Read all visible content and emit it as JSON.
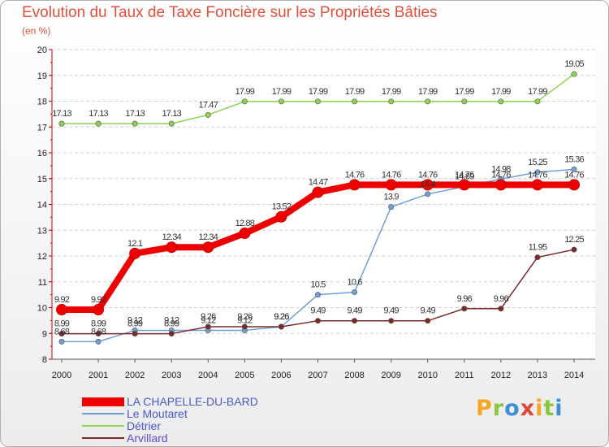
{
  "title": "Evolution du Taux de Taxe Foncière sur les Propriétés Bâties",
  "unit_label": "(en %)",
  "brand": {
    "text": "Proxiti",
    "letters": [
      "P",
      "r",
      "o",
      "x",
      "i",
      "t",
      "i"
    ],
    "colors": [
      "#f5a623",
      "#8cc63f",
      "#3a8fd6",
      "#e0463a",
      "#f5a623",
      "#8cc63f",
      "#3a8fd6"
    ]
  },
  "chart_data": {
    "type": "line",
    "title": "Evolution du Taux de Taxe Foncière sur les Propriétés Bâties",
    "ylabel": "(en %)",
    "xlabel": "",
    "ylim": [
      8,
      20
    ],
    "yticks": [
      8,
      9,
      10,
      11,
      12,
      13,
      14,
      15,
      16,
      17,
      18,
      19,
      20
    ],
    "categories": [
      "2000",
      "2001",
      "2002",
      "2003",
      "2004",
      "2005",
      "2006",
      "2007",
      "2008",
      "2009",
      "2010",
      "2011",
      "2012",
      "2013",
      "2014"
    ],
    "grid": "horizontal",
    "series": [
      {
        "name": "Détrier",
        "color": "#8fd14f",
        "style": "thin",
        "values": [
          17.13,
          17.13,
          17.13,
          17.13,
          17.47,
          17.99,
          17.99,
          17.99,
          17.99,
          17.99,
          17.99,
          17.99,
          17.99,
          17.99,
          19.05
        ],
        "labels": [
          "17.13",
          "17.13",
          "17.13",
          "17.13",
          "17.47",
          "17.99",
          "17.99",
          "17.99",
          "17.99",
          "17.99",
          "17.99",
          "17.99",
          "17.99",
          "17.99",
          "19.05"
        ]
      },
      {
        "name": "Le Moutaret",
        "color": "#6fa0d4",
        "style": "thin",
        "values": [
          8.68,
          8.68,
          9.12,
          9.12,
          9.12,
          9.12,
          9.26,
          10.5,
          10.6,
          13.9,
          14.4,
          14.69,
          14.98,
          15.25,
          15.36
        ],
        "labels": [
          "8.68",
          "8.68",
          "9.12",
          "9.12",
          "9.12",
          "9.12",
          "9.26",
          "10.5",
          "10.6",
          "13.9",
          "14.4",
          "14.69",
          "14.98",
          "15.25",
          "15.36"
        ]
      },
      {
        "name": "Arvillard",
        "color": "#7a2a2a",
        "style": "thin",
        "values": [
          8.99,
          8.99,
          8.99,
          8.99,
          9.26,
          9.26,
          9.26,
          9.49,
          9.49,
          9.49,
          9.49,
          9.96,
          9.96,
          11.95,
          12.25
        ],
        "labels": [
          "8.99",
          "8.99",
          "8.99",
          "8.99",
          "9.26",
          "9.26",
          "9.26",
          "9.49",
          "9.49",
          "9.49",
          "9.49",
          "9.96",
          "9.96",
          "11.95",
          "12.25"
        ]
      },
      {
        "name": "LA CHAPELLE-DU-BARD",
        "color": "#ee0000",
        "style": "thick",
        "values": [
          9.92,
          9.92,
          12.1,
          12.34,
          12.34,
          12.88,
          13.52,
          14.47,
          14.76,
          14.76,
          14.76,
          14.76,
          14.76,
          14.76,
          14.76
        ],
        "labels": [
          "9.92",
          "9.92",
          "12.1",
          "12.34",
          "12.34",
          "12.88",
          "13.52",
          "14.47",
          "14.76",
          "14.76",
          "14.76",
          "14.76",
          "14.76",
          "14.76",
          "14.76"
        ]
      }
    ],
    "legend": {
      "position": "bottom-left",
      "entries": [
        {
          "name": "LA CHAPELLE-DU-BARD",
          "color": "#ee0000",
          "style": "thick"
        },
        {
          "name": "Le Moutaret",
          "color": "#6fa0d4",
          "style": "thin"
        },
        {
          "name": "Détrier",
          "color": "#8fd14f",
          "style": "thin"
        },
        {
          "name": "Arvillard",
          "color": "#7a2a2a",
          "style": "thin"
        }
      ]
    }
  }
}
